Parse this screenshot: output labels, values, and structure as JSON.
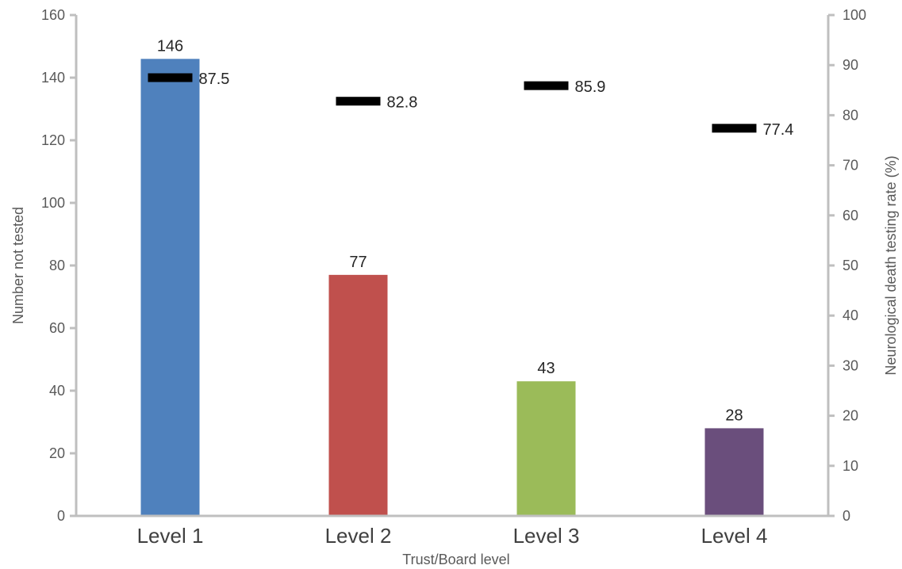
{
  "chart_data": {
    "type": "bar",
    "categories": [
      "Level 1",
      "Level 2",
      "Level 3",
      "Level 4"
    ],
    "series": [
      {
        "values": [
          146,
          77,
          43,
          28
        ],
        "axis": "left"
      },
      {
        "values": [
          87.5,
          82.8,
          85.9,
          77.4
        ],
        "axis": "right",
        "marker": "dash"
      }
    ],
    "bar_colors": [
      "#4f81bd",
      "#c0504d",
      "#9bbb59",
      "#6a4e7c"
    ],
    "marker_color": "#000000",
    "axis_color": "#bfbfbf",
    "xlabel": "Trust/Board level",
    "ylabel": "Number not tested",
    "ylabel_right": "Neurological death testing rate (%)",
    "ylim": [
      0,
      160
    ],
    "yticks": [
      0,
      20,
      40,
      60,
      80,
      100,
      120,
      140,
      160
    ],
    "ylim_right": [
      0,
      100
    ],
    "yticks_right": [
      0,
      10,
      20,
      30,
      40,
      50,
      60,
      70,
      80,
      90,
      100
    ],
    "bar_value_labels": [
      "146",
      "77",
      "43",
      "28"
    ],
    "marker_value_labels": [
      "87.5",
      "82.8",
      "85.9",
      "77.4"
    ],
    "grid": false,
    "legend": "none"
  }
}
